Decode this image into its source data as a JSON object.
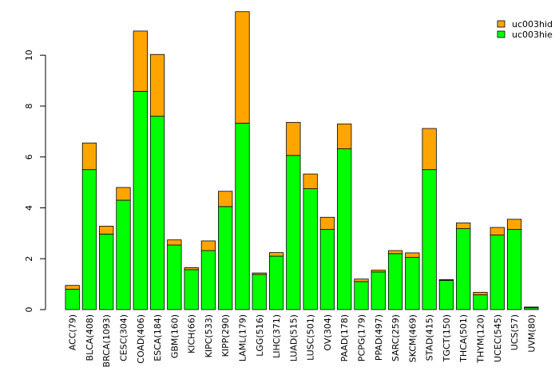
{
  "chart_data": {
    "type": "bar",
    "stacked": true,
    "categories": [
      "ACC(79)",
      "BLCA(408)",
      "BRCA(1093)",
      "CESC(304)",
      "COAD(406)",
      "ESCA(184)",
      "GBM(160)",
      "KICH(66)",
      "KIPC(533)",
      "KIPP(290)",
      "LAML(179)",
      "LGG(516)",
      "LIHC(371)",
      "LUAD(515)",
      "LUSC(501)",
      "OV(304)",
      "PAAD(178)",
      "PCPG(179)",
      "PPAD(497)",
      "SARC(259)",
      "SKCM(469)",
      "STAD(415)",
      "TGCT(150)",
      "THCA(501)",
      "THYM(120)",
      "UCEC(545)",
      "UCS(57)",
      "UVM(80)"
    ],
    "series": [
      {
        "name": "uc003hie",
        "color": "#00ff00",
        "values": [
          0.8,
          5.5,
          2.97,
          4.3,
          8.58,
          7.6,
          2.54,
          1.57,
          2.32,
          4.05,
          7.33,
          1.38,
          2.1,
          6.06,
          4.75,
          3.15,
          6.32,
          1.1,
          1.48,
          2.2,
          2.05,
          5.5,
          1.15,
          3.18,
          0.58,
          2.93,
          3.15,
          0.07
        ]
      },
      {
        "name": "uc003hid",
        "color": "#ffa500",
        "values": [
          0.15,
          1.05,
          0.31,
          0.5,
          2.37,
          2.43,
          0.2,
          0.08,
          0.38,
          0.6,
          4.38,
          0.06,
          0.14,
          1.3,
          0.58,
          0.48,
          0.98,
          0.1,
          0.07,
          0.12,
          0.18,
          1.62,
          0.03,
          0.23,
          0.1,
          0.3,
          0.4,
          0.03
        ]
      }
    ],
    "yticks": [
      0,
      2,
      4,
      6,
      8,
      10
    ],
    "ylim": [
      0,
      11.7
    ],
    "legend_position": "top-right",
    "legend_order": [
      "uc003hid",
      "uc003hie"
    ],
    "title": "",
    "xlabel": "",
    "ylabel": "",
    "grid": false
  }
}
